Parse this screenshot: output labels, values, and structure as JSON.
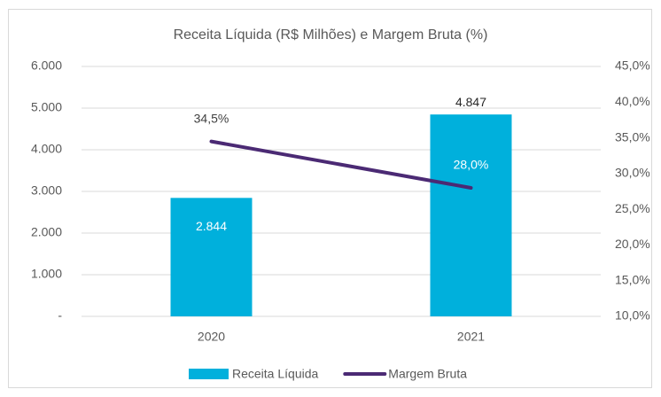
{
  "chart_data": {
    "type": "bar_line",
    "title": "Receita Líquida (R$ Milhões) e Margem Bruta (%)",
    "categories": [
      "2020",
      "2021"
    ],
    "series": [
      {
        "name": "Receita Líquida",
        "type": "bar",
        "color": "#00b0dc",
        "values": [
          2844,
          4847
        ],
        "value_labels": [
          "2.844",
          "4.847"
        ]
      },
      {
        "name": "Margem Bruta",
        "type": "line",
        "axis": "y2",
        "color": "#4b2a74",
        "values": [
          34.5,
          28.0
        ],
        "value_labels": [
          "34,5%",
          "28,0%"
        ]
      }
    ],
    "ylim": [
      0,
      6000
    ],
    "yticks": [
      {
        "value": 0,
        "label": "-"
      },
      {
        "value": 1000,
        "label": "1.000"
      },
      {
        "value": 2000,
        "label": "2.000"
      },
      {
        "value": 3000,
        "label": "3.000"
      },
      {
        "value": 4000,
        "label": "4.000"
      },
      {
        "value": 5000,
        "label": "5.000"
      },
      {
        "value": 6000,
        "label": "6.000"
      }
    ],
    "y2lim": [
      10,
      45
    ],
    "y2ticks": [
      {
        "value": 10,
        "label": "10,0%"
      },
      {
        "value": 15,
        "label": "15,0%"
      },
      {
        "value": 20,
        "label": "20,0%"
      },
      {
        "value": 25,
        "label": "25,0%"
      },
      {
        "value": 30,
        "label": "30,0%"
      },
      {
        "value": 35,
        "label": "35,0%"
      },
      {
        "value": 40,
        "label": "40,0%"
      },
      {
        "value": 45,
        "label": "45,0%"
      }
    ],
    "grid": true,
    "legend": "bottom"
  }
}
